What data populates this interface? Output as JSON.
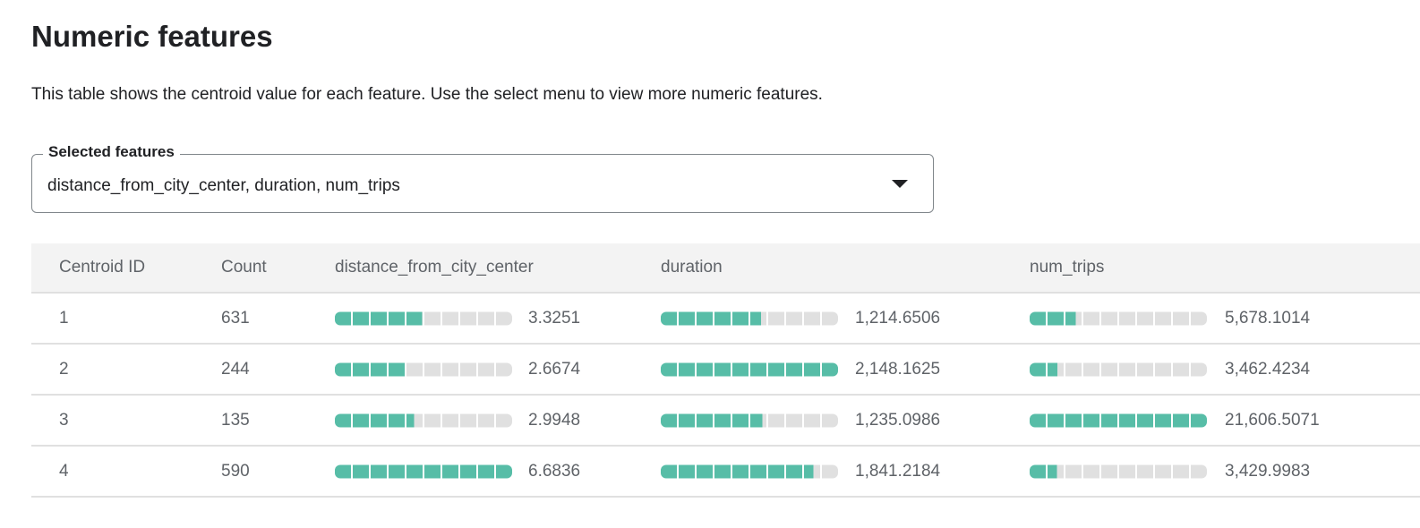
{
  "title": "Numeric features",
  "description": "This table shows the centroid value for each feature. Use the select menu to view more numeric features.",
  "select": {
    "label": "Selected features",
    "value": "distance_from_city_center, duration, num_trips",
    "icon": "caret-down-icon"
  },
  "colors": {
    "bar_fill": "#57bda7",
    "bar_empty": "#e0e0e0",
    "header_bg": "#f3f3f3"
  },
  "table": {
    "headers": [
      "Centroid ID",
      "Count",
      "distance_from_city_center",
      "duration",
      "num_trips"
    ],
    "rows": [
      {
        "id": "1",
        "count": "631",
        "values": [
          "3.3251",
          "1,214.6506",
          "5,678.1014"
        ],
        "fractions": [
          0.4975,
          0.5654,
          0.2628
        ]
      },
      {
        "id": "2",
        "count": "244",
        "values": [
          "2.6674",
          "2,148.1625",
          "3,462.4234"
        ],
        "fractions": [
          0.3991,
          1.0,
          0.1602
        ]
      },
      {
        "id": "3",
        "count": "135",
        "values": [
          "2.9948",
          "1,235.0986",
          "21,606.5071"
        ],
        "fractions": [
          0.4481,
          0.5749,
          1.0
        ]
      },
      {
        "id": "4",
        "count": "590",
        "values": [
          "6.6836",
          "1,841.2184",
          "3,429.9983"
        ],
        "fractions": [
          1.0,
          0.8571,
          0.1587
        ]
      }
    ]
  }
}
